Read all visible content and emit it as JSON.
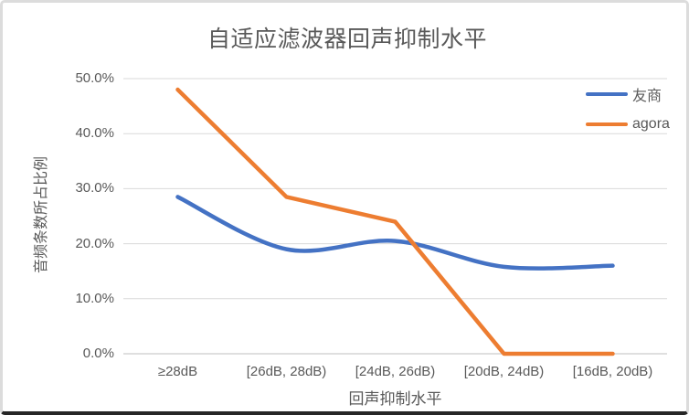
{
  "chart_data": {
    "type": "line",
    "title": "自适应滤波器回声抑制水平",
    "xlabel": "回声抑制水平",
    "ylabel": "音频条数所占比例",
    "categories": [
      "≥28dB",
      "[26dB, 28dB)",
      "[24dB, 26dB)",
      "[20dB, 24dB)",
      "[16dB, 20dB)"
    ],
    "series": [
      {
        "name": "友商",
        "values": [
          28.5,
          19.0,
          20.5,
          15.8,
          16.0
        ],
        "color": "#4472C4",
        "smooth": true
      },
      {
        "name": "agora",
        "values": [
          48.0,
          28.5,
          24.0,
          0.0,
          0.0
        ],
        "color": "#ED7D31",
        "smooth": false
      }
    ],
    "ylim": [
      0,
      50
    ],
    "y_ticks": [
      {
        "label": "0.0%",
        "value": 0
      },
      {
        "label": "10.0%",
        "value": 10
      },
      {
        "label": "20.0%",
        "value": 20
      },
      {
        "label": "30.0%",
        "value": 30
      },
      {
        "label": "40.0%",
        "value": 40
      },
      {
        "label": "50.0%",
        "value": 50
      }
    ],
    "grid": "horizontal",
    "legend_position": "right"
  },
  "colors": {
    "text": "#595959",
    "gridline": "#D9D9D9",
    "axis_line": "#BFBFBF"
  }
}
